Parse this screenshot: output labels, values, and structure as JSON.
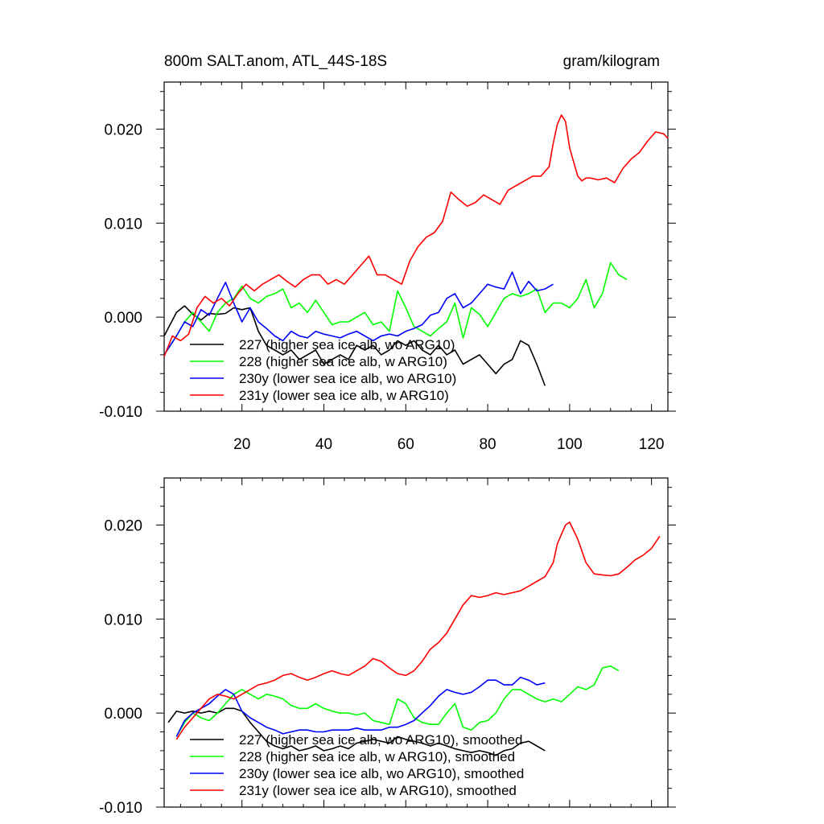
{
  "chart_data": [
    {
      "type": "line",
      "title": "800m SALT.anom, ATL_44S-18S",
      "units": "gram/kilogram",
      "xlim": [
        1,
        124
      ],
      "ylim": [
        -0.01,
        0.025
      ],
      "xticks": [
        "20",
        "40",
        "60",
        "80",
        "100",
        "120"
      ],
      "yticks": [
        "-0.010",
        "0.000",
        "0.010",
        "0.020"
      ],
      "series": [
        {
          "name": "227 (higher sea ice alb, wo ARG10)",
          "color": "#000000",
          "x": [
            1,
            4,
            6,
            8,
            10,
            12,
            14,
            16,
            18,
            20,
            22,
            24,
            26,
            28,
            30,
            32,
            34,
            36,
            38,
            40,
            42,
            44,
            46,
            48,
            50,
            52,
            54,
            56,
            58,
            60,
            62,
            64,
            66,
            68,
            70,
            72,
            74,
            76,
            78,
            80,
            82,
            84,
            86,
            88,
            90,
            92,
            94
          ],
          "y": [
            -0.002,
            0.0005,
            0.0012,
            0.0003,
            -0.0003,
            0.0004,
            0.0003,
            0.0004,
            0.001,
            0.0008,
            0.001,
            -0.0015,
            -0.003,
            -0.0035,
            -0.004,
            -0.0035,
            -0.0045,
            -0.004,
            -0.0035,
            -0.005,
            -0.0045,
            -0.004,
            -0.0045,
            -0.003,
            -0.0035,
            -0.003,
            -0.004,
            -0.0035,
            -0.0025,
            -0.003,
            -0.0025,
            -0.0035,
            -0.004,
            -0.003,
            -0.004,
            -0.0035,
            -0.005,
            -0.0045,
            -0.004,
            -0.005,
            -0.006,
            -0.005,
            -0.0045,
            -0.0025,
            -0.003,
            -0.005,
            -0.0073
          ]
        },
        {
          "name": "228 (higher sea ice alb, w ARG10)",
          "color": "#00ff00",
          "x": [
            1,
            4,
            6,
            8,
            10,
            12,
            14,
            16,
            18,
            20,
            22,
            24,
            26,
            28,
            30,
            32,
            34,
            36,
            38,
            40,
            42,
            44,
            46,
            48,
            50,
            52,
            54,
            56,
            58,
            60,
            62,
            64,
            66,
            68,
            70,
            72,
            74,
            76,
            78,
            80,
            82,
            84,
            86,
            88,
            90,
            92,
            94,
            96,
            98,
            100,
            102,
            104,
            106,
            108,
            110,
            112,
            114
          ],
          "y": [
            -0.004,
            -0.002,
            -0.0005,
            0.0005,
            -0.0005,
            -0.0015,
            0.0005,
            0.0015,
            0.002,
            0.0033,
            0.002,
            0.0015,
            0.0022,
            0.0025,
            0.003,
            0.001,
            0.0015,
            0.0005,
            0.0018,
            0.0005,
            -0.0008,
            -0.0005,
            -0.0005,
            0.0,
            0.0005,
            -0.0008,
            -0.0005,
            -0.0015,
            0.0028,
            0.001,
            -0.001,
            -0.0015,
            -0.002,
            -0.0012,
            -0.0005,
            0.0015,
            -0.0022,
            0.001,
            0.0003,
            -0.001,
            0.0005,
            0.002,
            0.0025,
            0.0022,
            0.0025,
            0.003,
            0.0005,
            0.0015,
            0.0015,
            0.001,
            0.002,
            0.004,
            0.001,
            0.0025,
            0.0058,
            0.0045,
            0.004
          ]
        },
        {
          "name": "230y (lower sea ice alb, wo ARG10)",
          "color": "#0000ff",
          "x": [
            1,
            4,
            6,
            8,
            10,
            12,
            14,
            16,
            18,
            20,
            22,
            24,
            26,
            28,
            30,
            32,
            34,
            36,
            38,
            40,
            42,
            44,
            46,
            48,
            50,
            52,
            54,
            56,
            58,
            60,
            62,
            64,
            66,
            68,
            70,
            72,
            74,
            76,
            78,
            80,
            82,
            84,
            86,
            88,
            90,
            92,
            94,
            96
          ],
          "y": [
            -0.004,
            -0.002,
            -0.0005,
            -0.001,
            0.0008,
            0.0002,
            0.002,
            0.0037,
            0.0015,
            -0.0005,
            0.001,
            -0.0005,
            -0.0012,
            -0.002,
            -0.0025,
            -0.0015,
            -0.002,
            -0.0022,
            -0.0015,
            -0.0018,
            -0.002,
            -0.0022,
            -0.0018,
            -0.0015,
            -0.002,
            -0.0025,
            -0.002,
            -0.0018,
            -0.002,
            -0.0015,
            -0.0012,
            -0.0008,
            0.0002,
            0.0005,
            0.002,
            0.0025,
            0.001,
            0.0015,
            0.0025,
            0.0035,
            0.0032,
            0.003,
            0.0048,
            0.0025,
            0.0038,
            0.0028,
            0.003,
            0.0035
          ]
        },
        {
          "name": "231y (lower sea ice alb, w ARG10)",
          "color": "#ff0000",
          "x": [
            1,
            3,
            5,
            7,
            9,
            11,
            13,
            15,
            17,
            19,
            21,
            23,
            25,
            27,
            29,
            31,
            33,
            35,
            37,
            39,
            41,
            43,
            45,
            47,
            49,
            51,
            53,
            55,
            57,
            59,
            61,
            63,
            65,
            67,
            69,
            71,
            73,
            75,
            77,
            79,
            81,
            83,
            85,
            87,
            89,
            91,
            93,
            95,
            96,
            97,
            98,
            99,
            100,
            101,
            102,
            103,
            104,
            105,
            107,
            109,
            111,
            113,
            115,
            117,
            119,
            121,
            123,
            124
          ],
          "y": [
            -0.0042,
            -0.002,
            -0.0025,
            -0.0018,
            0.001,
            0.0022,
            0.0015,
            0.002,
            0.0012,
            0.0025,
            0.0035,
            0.0028,
            0.0035,
            0.004,
            0.0045,
            0.0038,
            0.0032,
            0.004,
            0.0045,
            0.0045,
            0.0035,
            0.004,
            0.0035,
            0.0045,
            0.0055,
            0.0065,
            0.0045,
            0.0045,
            0.004,
            0.0035,
            0.006,
            0.0075,
            0.0085,
            0.009,
            0.0102,
            0.0133,
            0.0125,
            0.0118,
            0.0122,
            0.013,
            0.0125,
            0.012,
            0.0135,
            0.014,
            0.0145,
            0.015,
            0.015,
            0.016,
            0.0185,
            0.0205,
            0.0215,
            0.0208,
            0.018,
            0.0165,
            0.015,
            0.0145,
            0.0148,
            0.0148,
            0.0146,
            0.0148,
            0.0143,
            0.0158,
            0.0168,
            0.0175,
            0.0187,
            0.0197,
            0.0195,
            0.019
          ]
        }
      ]
    },
    {
      "type": "line",
      "title": "",
      "units": "",
      "xlim": [
        1,
        124
      ],
      "ylim": [
        -0.01,
        0.025
      ],
      "xticks": [],
      "yticks": [
        "-0.010",
        "0.000",
        "0.010",
        "0.020"
      ],
      "series": [
        {
          "name": "227 (higher sea ice alb, wo ARG10), smoothed",
          "color": "#000000",
          "x": [
            2,
            4,
            6,
            8,
            10,
            12,
            14,
            16,
            18,
            20,
            22,
            24,
            26,
            28,
            30,
            32,
            34,
            36,
            38,
            40,
            42,
            44,
            46,
            48,
            50,
            52,
            54,
            56,
            58,
            60,
            62,
            64,
            66,
            68,
            70,
            72,
            74,
            76,
            78,
            80,
            82,
            84,
            86,
            88,
            90,
            92,
            94
          ],
          "y": [
            -0.001,
            0.0002,
            0.0,
            0.0002,
            0.0,
            0.0002,
            0.0,
            0.0005,
            0.0005,
            0.0002,
            -0.001,
            -0.002,
            -0.003,
            -0.0035,
            -0.0038,
            -0.0035,
            -0.004,
            -0.0038,
            -0.0035,
            -0.004,
            -0.0038,
            -0.0035,
            -0.0038,
            -0.0032,
            -0.003,
            -0.0028,
            -0.003,
            -0.0032,
            -0.0025,
            -0.0028,
            -0.003,
            -0.0032,
            -0.0035,
            -0.0032,
            -0.0035,
            -0.0038,
            -0.004,
            -0.0042,
            -0.004,
            -0.0042,
            -0.0045,
            -0.004,
            -0.0038,
            -0.0032,
            -0.003,
            -0.0035,
            -0.004
          ]
        },
        {
          "name": "228 (higher sea ice alb, w ARG10), smoothed",
          "color": "#00ff00",
          "x": [
            4,
            6,
            8,
            10,
            12,
            14,
            16,
            18,
            20,
            22,
            24,
            26,
            28,
            30,
            32,
            34,
            36,
            38,
            40,
            42,
            44,
            46,
            48,
            50,
            52,
            54,
            56,
            58,
            60,
            62,
            64,
            66,
            68,
            70,
            72,
            74,
            76,
            78,
            80,
            82,
            84,
            86,
            88,
            90,
            92,
            94,
            96,
            98,
            100,
            102,
            104,
            106,
            108,
            110,
            112
          ],
          "y": [
            -0.0025,
            -0.001,
            0.0,
            -0.0005,
            -0.0008,
            0.0,
            0.001,
            0.002,
            0.0025,
            0.002,
            0.0015,
            0.002,
            0.0018,
            0.0015,
            0.0008,
            0.0005,
            0.0005,
            0.001,
            0.0005,
            0.0002,
            0.0,
            0.0,
            -0.0002,
            0.0,
            -0.0008,
            -0.001,
            -0.0012,
            0.0015,
            0.001,
            -0.0005,
            -0.001,
            -0.0012,
            -0.0012,
            0.0,
            0.001,
            -0.0015,
            -0.0018,
            -0.001,
            -0.0008,
            0.0,
            0.0015,
            0.0025,
            0.0025,
            0.002,
            0.0015,
            0.0012,
            0.0015,
            0.0012,
            0.002,
            0.0028,
            0.0025,
            0.003,
            0.0048,
            0.005,
            0.0045
          ]
        },
        {
          "name": "230y (lower sea ice alb, wo ARG10), smoothed",
          "color": "#0000ff",
          "x": [
            4,
            6,
            8,
            10,
            12,
            14,
            16,
            18,
            20,
            22,
            24,
            26,
            28,
            30,
            32,
            34,
            36,
            38,
            40,
            42,
            44,
            46,
            48,
            50,
            52,
            54,
            56,
            58,
            60,
            62,
            64,
            66,
            68,
            70,
            72,
            74,
            76,
            78,
            80,
            82,
            84,
            86,
            88,
            90,
            92,
            94
          ],
          "y": [
            -0.0025,
            -0.0008,
            0.0,
            0.0005,
            0.001,
            0.0018,
            0.0025,
            0.002,
            0.0002,
            -0.0005,
            -0.001,
            -0.0015,
            -0.0018,
            -0.0022,
            -0.002,
            -0.0018,
            -0.0018,
            -0.002,
            -0.002,
            -0.0018,
            -0.0018,
            -0.0018,
            -0.0016,
            -0.0018,
            -0.0018,
            -0.0018,
            -0.0015,
            -0.0015,
            -0.0012,
            -0.0008,
            0.0,
            0.0008,
            0.0018,
            0.0025,
            0.0022,
            0.002,
            0.0022,
            0.0028,
            0.0035,
            0.0035,
            0.003,
            0.003,
            0.0038,
            0.0035,
            0.003,
            0.0032
          ]
        },
        {
          "name": "231y (lower sea ice alb, w ARG10), smoothed",
          "color": "#ff0000",
          "x": [
            4,
            6,
            8,
            10,
            12,
            14,
            16,
            18,
            20,
            22,
            24,
            26,
            28,
            30,
            32,
            34,
            36,
            38,
            40,
            42,
            44,
            46,
            48,
            50,
            52,
            54,
            56,
            58,
            60,
            62,
            64,
            66,
            68,
            70,
            72,
            74,
            76,
            78,
            80,
            82,
            84,
            86,
            88,
            90,
            92,
            94,
            96,
            97,
            98,
            99,
            100,
            102,
            104,
            106,
            108,
            110,
            112,
            114,
            116,
            118,
            120,
            122
          ],
          "y": [
            -0.0028,
            -0.0015,
            -0.0005,
            0.0005,
            0.0015,
            0.002,
            0.0018,
            0.0015,
            0.002,
            0.0025,
            0.003,
            0.0032,
            0.0035,
            0.004,
            0.0042,
            0.0038,
            0.0035,
            0.0038,
            0.0042,
            0.0045,
            0.0042,
            0.004,
            0.0045,
            0.005,
            0.0058,
            0.0055,
            0.0048,
            0.0042,
            0.004,
            0.0045,
            0.0055,
            0.0068,
            0.0075,
            0.0085,
            0.01,
            0.0115,
            0.0125,
            0.0123,
            0.0125,
            0.0128,
            0.0126,
            0.0128,
            0.013,
            0.0135,
            0.014,
            0.0145,
            0.016,
            0.018,
            0.019,
            0.02,
            0.0203,
            0.0185,
            0.016,
            0.0148,
            0.0147,
            0.0146,
            0.0148,
            0.0155,
            0.0163,
            0.0168,
            0.0175,
            0.0188
          ]
        }
      ]
    }
  ]
}
